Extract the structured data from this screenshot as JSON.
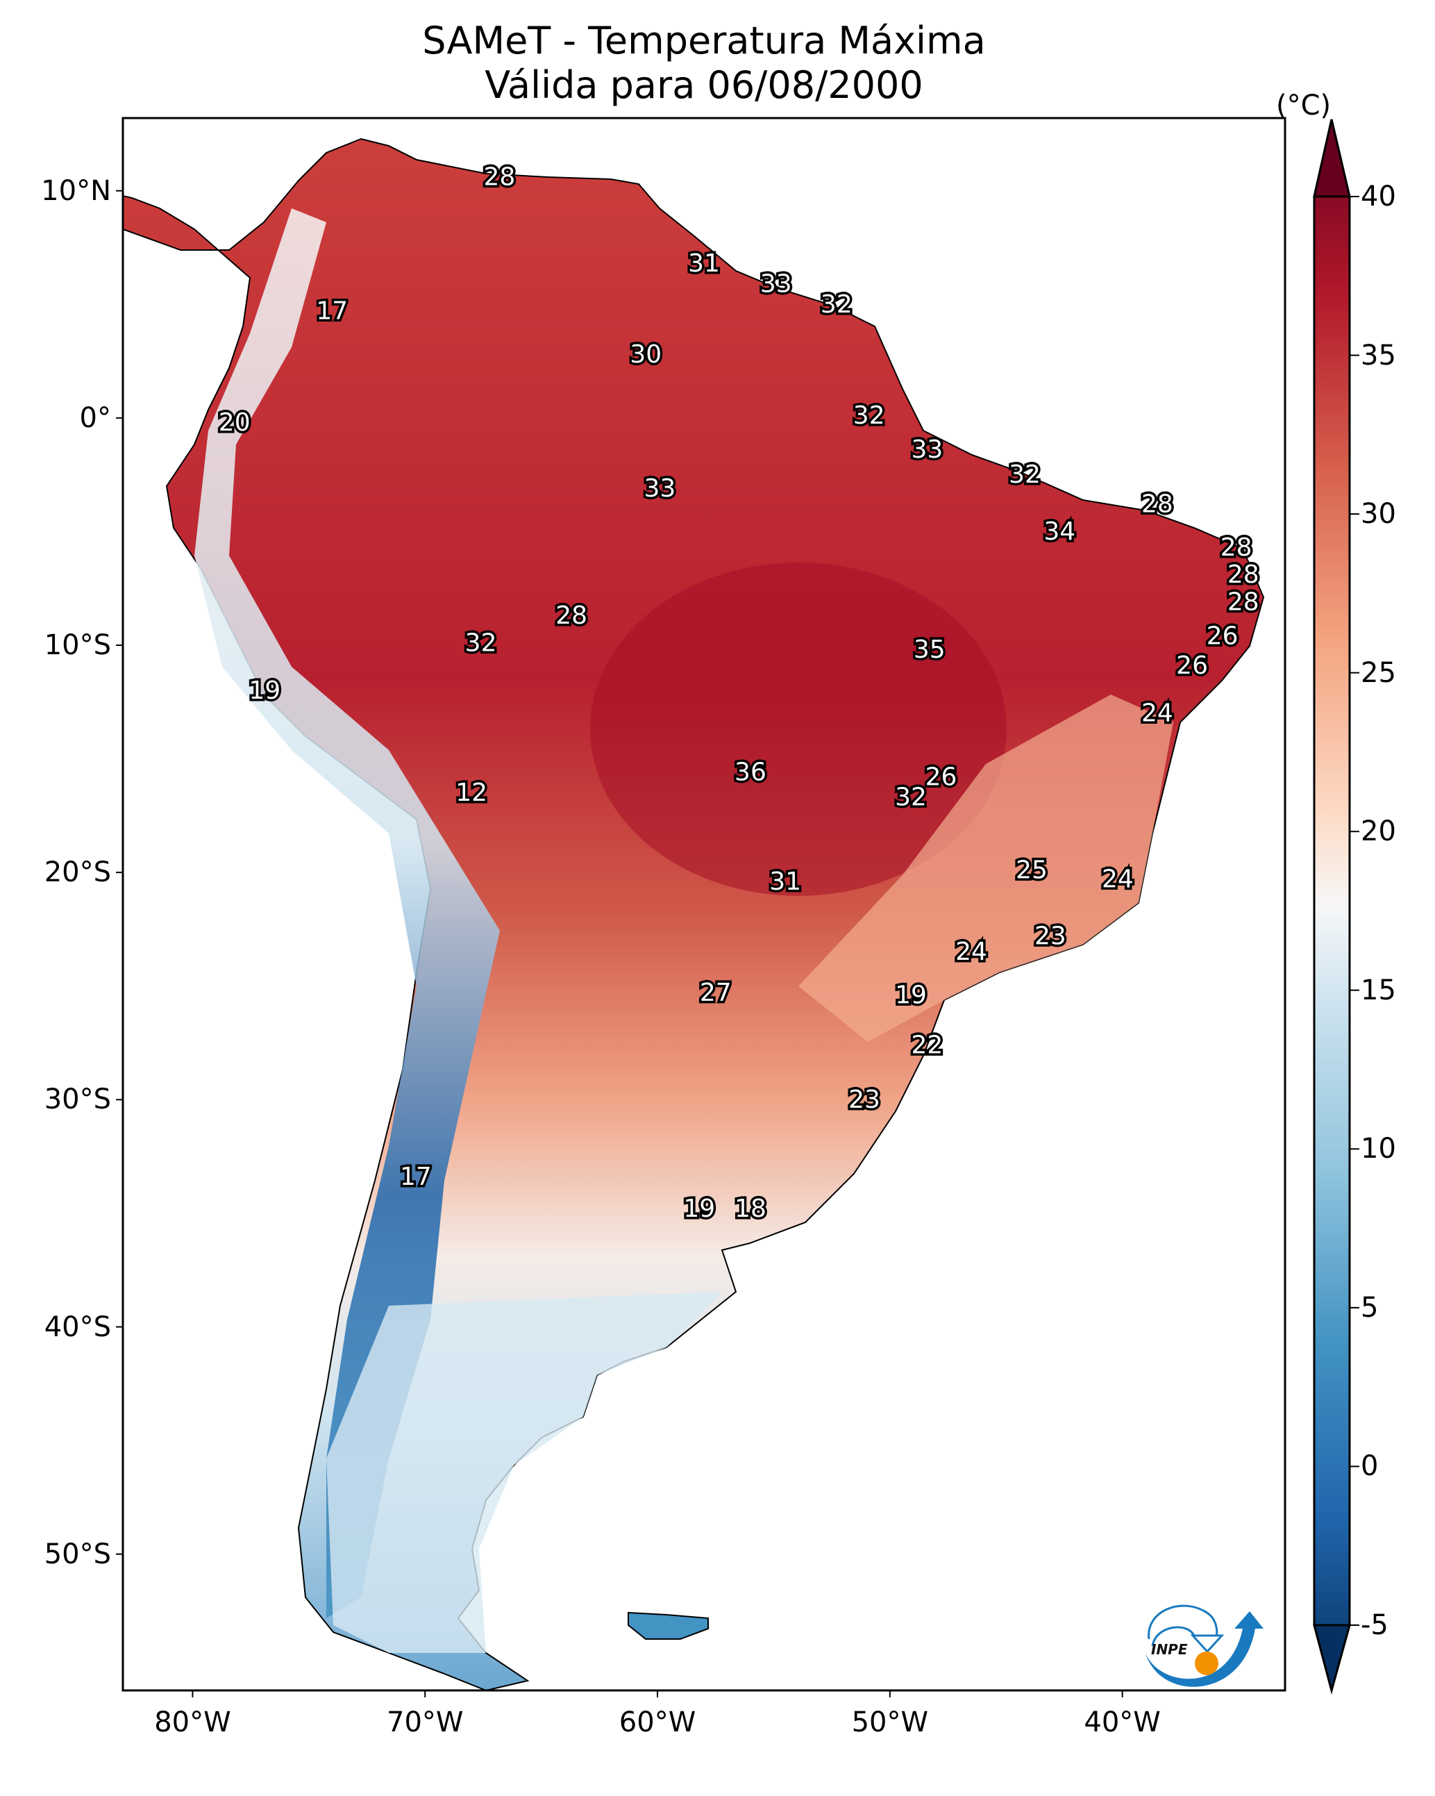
{
  "title": {
    "line1": "SAMeT - Temperatura Máxima",
    "line2": "Válida para 06/08/2000"
  },
  "logo": {
    "text": "INPE",
    "name": "inpe-logo"
  },
  "colors": {
    "ocean": "#ffffff",
    "frame": "#000000",
    "label_fill": "#ffffff",
    "label_stroke": "#000000",
    "logo_blue": "#1a7ac0",
    "logo_orange": "#f39200"
  },
  "chart_data": {
    "type": "heatmap",
    "title": "SAMeT - Temperatura Máxima / Válida para 06/08/2000",
    "xlabel": "",
    "ylabel": "",
    "xlim": [
      -83,
      -33
    ],
    "ylim": [
      -56,
      13.2
    ],
    "grid": false,
    "x_ticks": [
      {
        "value": -80,
        "label": "80°W"
      },
      {
        "value": -70,
        "label": "70°W"
      },
      {
        "value": -60,
        "label": "60°W"
      },
      {
        "value": -50,
        "label": "50°W"
      },
      {
        "value": -40,
        "label": "40°W"
      }
    ],
    "y_ticks": [
      {
        "value": 10,
        "label": "10°N"
      },
      {
        "value": 0,
        "label": "0°"
      },
      {
        "value": -10,
        "label": "10°S"
      },
      {
        "value": -20,
        "label": "20°S"
      },
      {
        "value": -30,
        "label": "30°S"
      },
      {
        "value": -40,
        "label": "40°S"
      },
      {
        "value": -50,
        "label": "50°S"
      }
    ],
    "colorbar": {
      "unit": "(°C)",
      "cmap": "RdBu_r",
      "range": [
        -5,
        40
      ],
      "extend": "both",
      "placement": "right",
      "ticks": [
        40,
        35,
        30,
        25,
        20,
        15,
        10,
        5,
        0,
        -5
      ],
      "tick_labels": [
        "40",
        "35",
        "30",
        "25",
        "20",
        "15",
        "10",
        "5",
        "0",
        "-5"
      ]
    },
    "annotations": [
      {
        "lon": -66.8,
        "lat": 10.6,
        "value": 28
      },
      {
        "lon": -74.0,
        "lat": 4.7,
        "value": 17
      },
      {
        "lon": -78.2,
        "lat": -0.2,
        "value": 20
      },
      {
        "lon": -58.0,
        "lat": 6.8,
        "value": 31
      },
      {
        "lon": -54.9,
        "lat": 5.9,
        "value": 33
      },
      {
        "lon": -52.3,
        "lat": 5.0,
        "value": 32
      },
      {
        "lon": -60.5,
        "lat": 2.8,
        "value": 30
      },
      {
        "lon": -50.9,
        "lat": 0.1,
        "value": 32
      },
      {
        "lon": -48.4,
        "lat": -1.4,
        "value": 33
      },
      {
        "lon": -59.9,
        "lat": -3.1,
        "value": 33
      },
      {
        "lon": -44.2,
        "lat": -2.5,
        "value": 32
      },
      {
        "lon": -38.5,
        "lat": -3.8,
        "value": 28
      },
      {
        "lon": -42.7,
        "lat": -5.0,
        "value": 34
      },
      {
        "lon": -35.1,
        "lat": -5.7,
        "value": 28
      },
      {
        "lon": -34.8,
        "lat": -6.9,
        "value": 28
      },
      {
        "lon": -34.8,
        "lat": -8.1,
        "value": 28
      },
      {
        "lon": -63.7,
        "lat": -8.7,
        "value": 28
      },
      {
        "lon": -67.6,
        "lat": -9.9,
        "value": 32
      },
      {
        "lon": -48.3,
        "lat": -10.2,
        "value": 35
      },
      {
        "lon": -35.7,
        "lat": -9.6,
        "value": 26
      },
      {
        "lon": -37.0,
        "lat": -10.9,
        "value": 26
      },
      {
        "lon": -76.9,
        "lat": -12.0,
        "value": 19
      },
      {
        "lon": -38.5,
        "lat": -13.0,
        "value": 24
      },
      {
        "lon": -47.8,
        "lat": -15.8,
        "value": 26
      },
      {
        "lon": -56.0,
        "lat": -15.6,
        "value": 36
      },
      {
        "lon": -68.0,
        "lat": -16.5,
        "value": 12
      },
      {
        "lon": -49.1,
        "lat": -16.7,
        "value": 32
      },
      {
        "lon": -43.9,
        "lat": -19.9,
        "value": 25
      },
      {
        "lon": -54.5,
        "lat": -20.4,
        "value": 31
      },
      {
        "lon": -40.2,
        "lat": -20.3,
        "value": 24
      },
      {
        "lon": -43.1,
        "lat": -22.8,
        "value": 23
      },
      {
        "lon": -46.5,
        "lat": -23.5,
        "value": 24
      },
      {
        "lon": -57.5,
        "lat": -25.3,
        "value": 27
      },
      {
        "lon": -49.1,
        "lat": -25.4,
        "value": 19
      },
      {
        "lon": -48.4,
        "lat": -27.6,
        "value": 22
      },
      {
        "lon": -51.1,
        "lat": -30.0,
        "value": 23
      },
      {
        "lon": -70.4,
        "lat": -33.4,
        "value": 17
      },
      {
        "lon": -58.2,
        "lat": -34.8,
        "value": 19
      },
      {
        "lon": -56.0,
        "lat": -34.8,
        "value": 18
      }
    ]
  }
}
